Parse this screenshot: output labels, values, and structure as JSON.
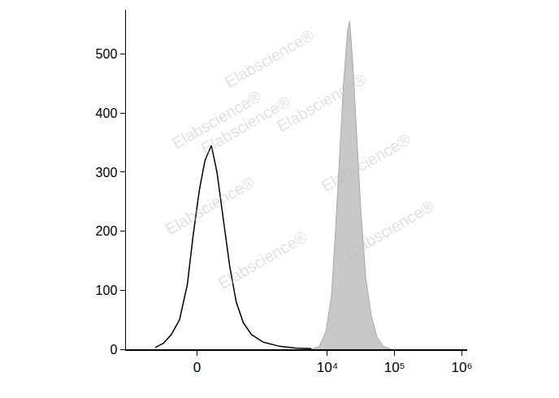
{
  "chart_data": {
    "type": "line",
    "series": [
      {
        "color": "#000000",
        "x": [
          -453,
          -327,
          -228,
          -146,
          -77,
          -32,
          19,
          64,
          118,
          170,
          237,
          316,
          411,
          538,
          725,
          1106,
          1932,
          3335,
          5800
        ],
        "values": [
          3,
          10,
          25,
          50,
          110,
          190,
          270,
          320,
          345,
          300,
          220,
          140,
          80,
          45,
          25,
          12,
          5,
          2,
          1
        ]
      },
      {
        "color": "#c8c8c8",
        "x": [
          5760,
          7600,
          9500,
          11500,
          13200,
          15200,
          17400,
          20000,
          21500,
          24000,
          27600,
          31600,
          37300,
          45300,
          55000,
          67800,
          89400
        ],
        "values": [
          0,
          5,
          30,
          90,
          200,
          330,
          450,
          540,
          555,
          480,
          350,
          230,
          120,
          55,
          20,
          5,
          0
        ]
      }
    ],
    "xlim": [
      -1300,
      1200000
    ],
    "xticks": [
      0,
      {
        "value": 10000,
        "label": "10⁴"
      },
      {
        "value": 100000,
        "label": "10⁵"
      },
      {
        "value": 1000000,
        "label": "10⁶"
      }
    ],
    "ylim": [
      0,
      575
    ],
    "yticks": [
      0,
      100,
      200,
      300,
      400,
      500
    ],
    "grid": false,
    "annotations": [
      "Elabscience®",
      "Elabscience®",
      "Elabscience®",
      "Elabscience®",
      "Elabscience®",
      "Elabscience®",
      "Elabscience®",
      "Elabscience®"
    ]
  }
}
